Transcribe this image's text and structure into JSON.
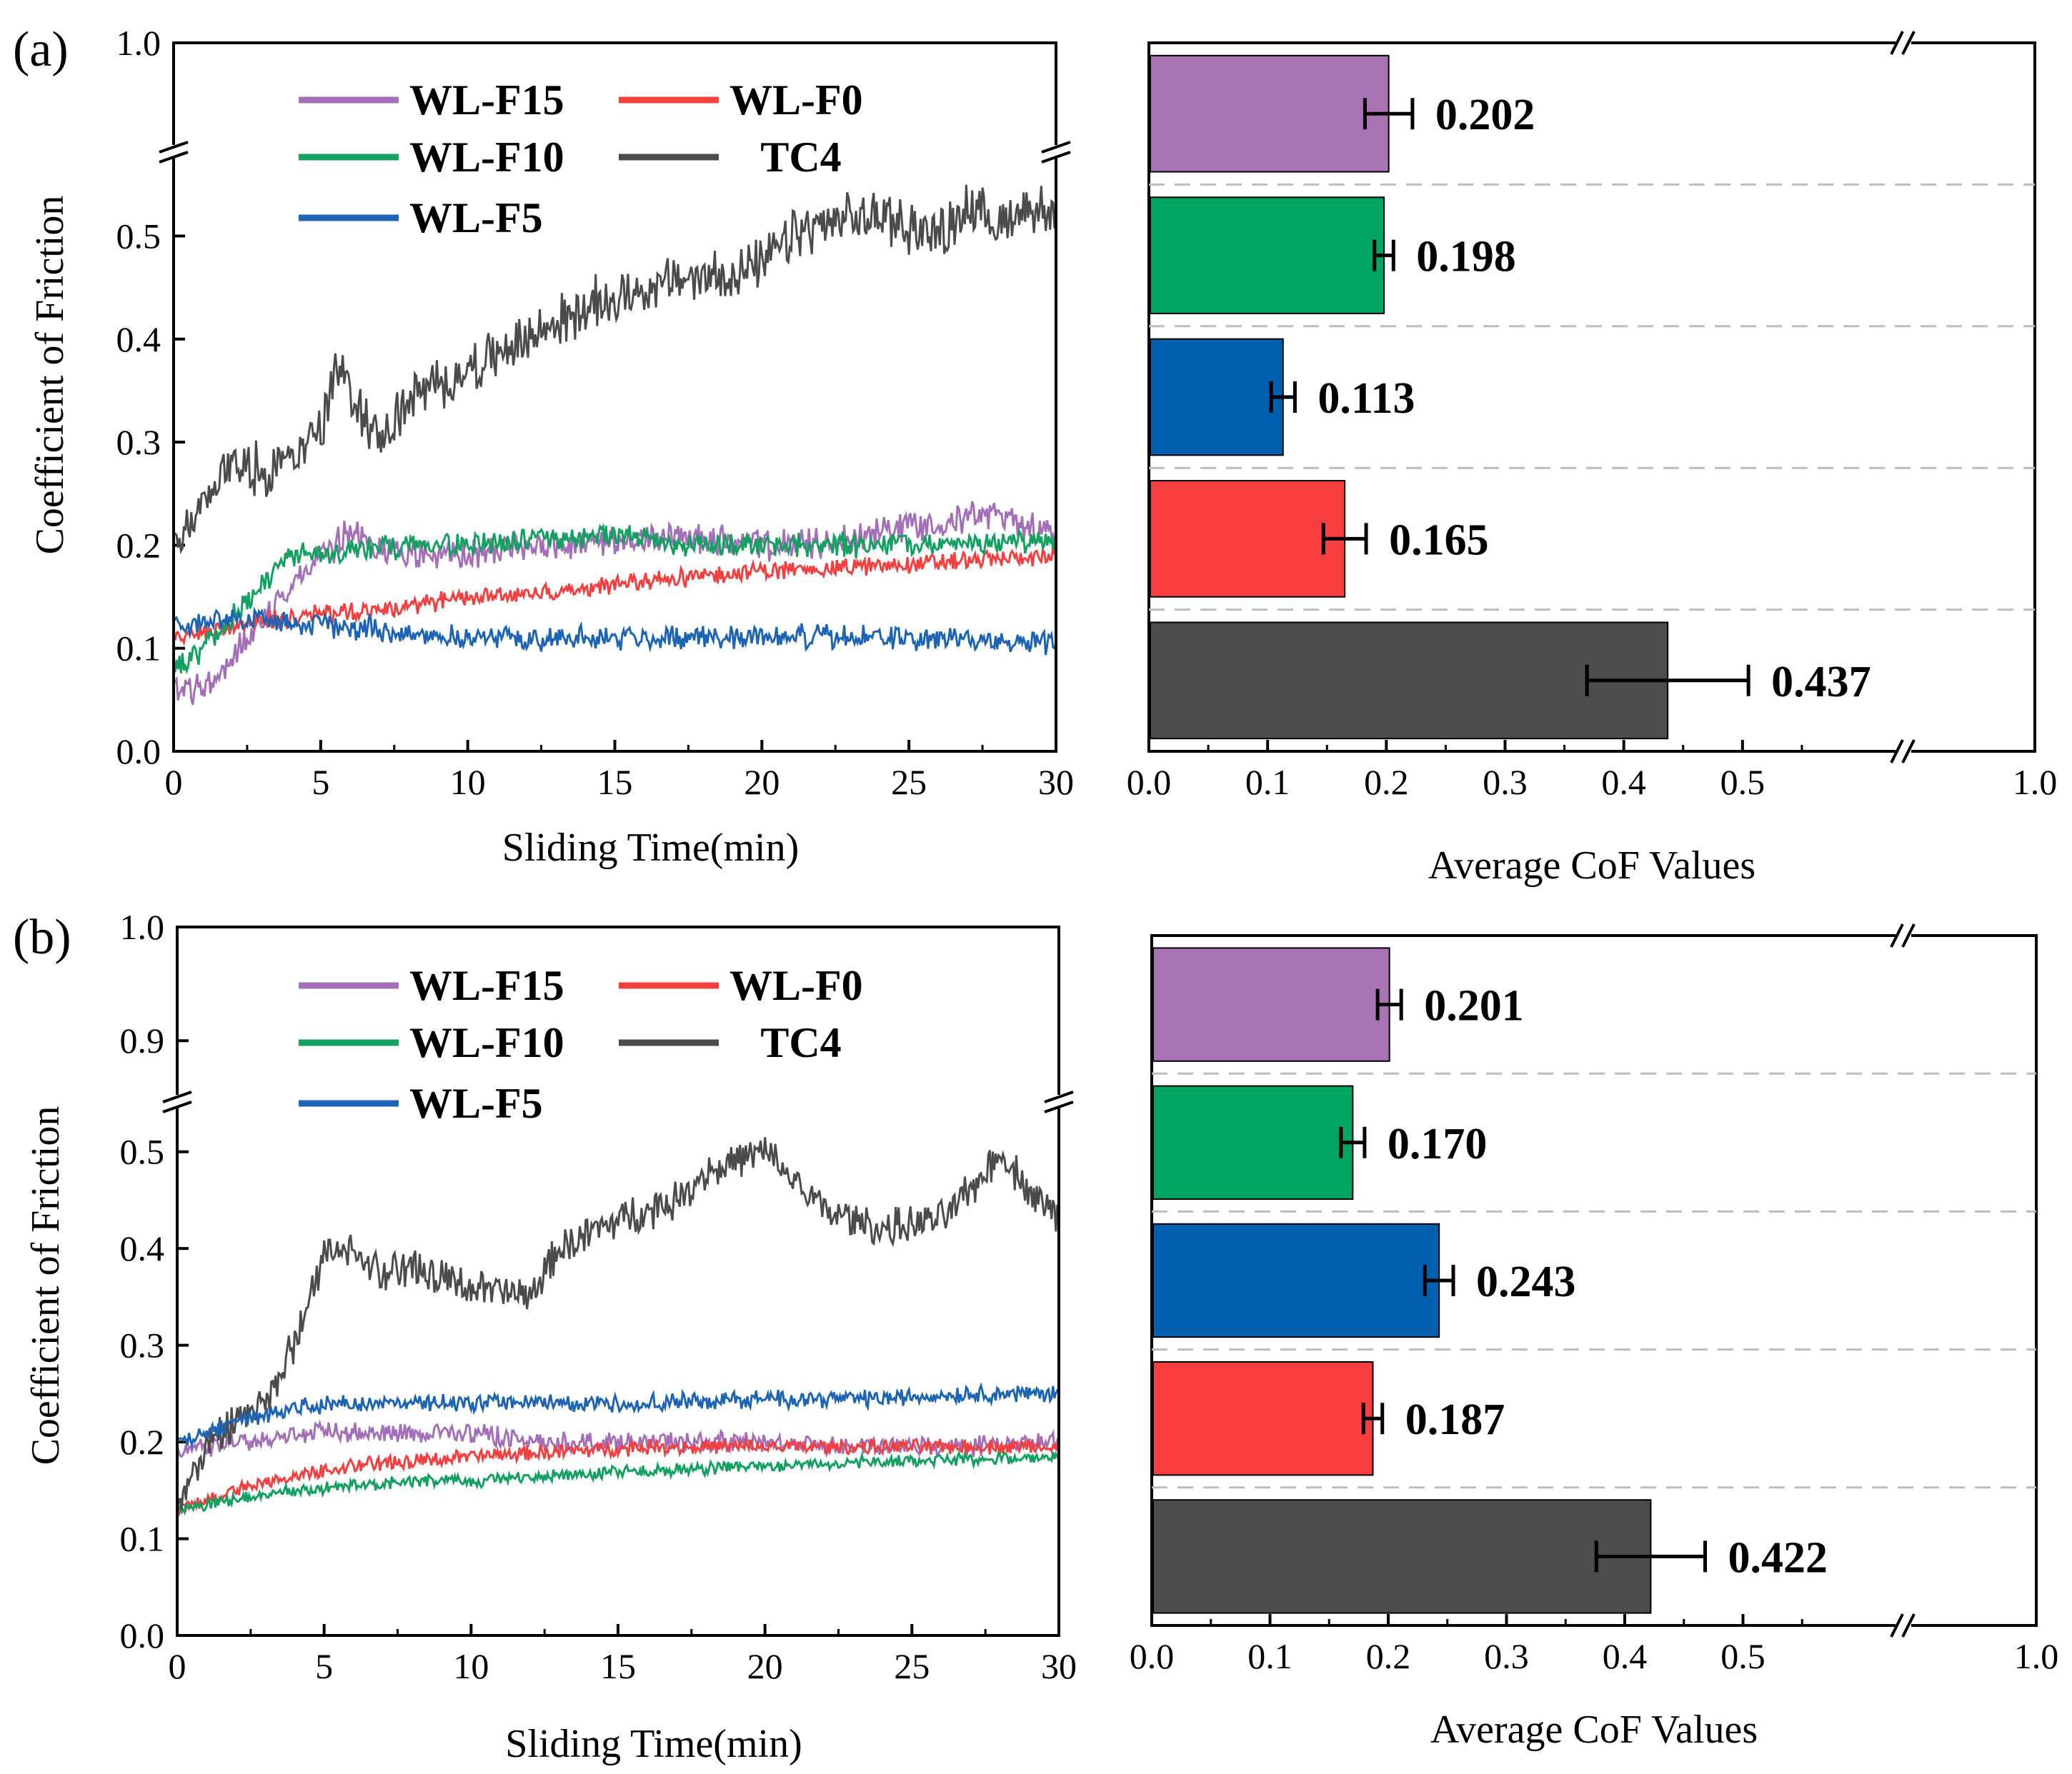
{
  "panels": [
    {
      "label": "(a)",
      "line_chart": {
        "type": "line",
        "xlabel": "Sliding Time(min)",
        "ylabel": "Coefficient of Friction",
        "xlim": [
          0,
          30
        ],
        "x_ticks": [
          "0",
          "5",
          "10",
          "15",
          "20",
          "25",
          "30"
        ],
        "ylim_lower": [
          0.0,
          0.58
        ],
        "ylim_upper": [
          1.0,
          1.0
        ],
        "y_ticks_lower": [
          "0.0",
          "0.1",
          "0.2",
          "0.3",
          "0.4",
          "0.5"
        ],
        "y_ticks_upper": [
          "1.0"
        ],
        "axis_break": true,
        "legend": [
          "WL-F15",
          "WL-F0",
          "WL-F10",
          "TC4",
          "WL-F5"
        ],
        "series": [
          {
            "name": "WL-F15",
            "color": "#a370b8",
            "points": [
              [
                0,
                0.06
              ],
              [
                1,
                0.06
              ],
              [
                2,
                0.09
              ],
              [
                3,
                0.13
              ],
              [
                4,
                0.16
              ],
              [
                5,
                0.19
              ],
              [
                6,
                0.21
              ],
              [
                8,
                0.19
              ],
              [
                10,
                0.19
              ],
              [
                12,
                0.2
              ],
              [
                15,
                0.2
              ],
              [
                17,
                0.21
              ],
              [
                20,
                0.2
              ],
              [
                22,
                0.2
              ],
              [
                25,
                0.22
              ],
              [
                28,
                0.23
              ],
              [
                30,
                0.21
              ]
            ],
            "noise": 0.012
          },
          {
            "name": "WL-F0",
            "color": "#f24040",
            "points": [
              [
                0,
                0.11
              ],
              [
                2,
                0.12
              ],
              [
                4,
                0.13
              ],
              [
                6,
                0.135
              ],
              [
                8,
                0.14
              ],
              [
                10,
                0.15
              ],
              [
                13,
                0.155
              ],
              [
                16,
                0.165
              ],
              [
                20,
                0.175
              ],
              [
                24,
                0.18
              ],
              [
                27,
                0.185
              ],
              [
                30,
                0.19
              ]
            ],
            "noise": 0.007
          },
          {
            "name": "WL-F10",
            "color": "#13a060",
            "points": [
              [
                0,
                0.08
              ],
              [
                1,
                0.1
              ],
              [
                2,
                0.13
              ],
              [
                3,
                0.16
              ],
              [
                4,
                0.19
              ],
              [
                6,
                0.195
              ],
              [
                8,
                0.2
              ],
              [
                10,
                0.2
              ],
              [
                12,
                0.205
              ],
              [
                15,
                0.21
              ],
              [
                18,
                0.2
              ],
              [
                20,
                0.2
              ],
              [
                23,
                0.2
              ],
              [
                26,
                0.2
              ],
              [
                30,
                0.205
              ]
            ],
            "noise": 0.009
          },
          {
            "name": "TC4",
            "color": "#4b4b4b",
            "points": [
              [
                0,
                0.2
              ],
              [
                1,
                0.24
              ],
              [
                2,
                0.28
              ],
              [
                3,
                0.27
              ],
              [
                4,
                0.29
              ],
              [
                5,
                0.31
              ],
              [
                5.5,
                0.37
              ],
              [
                6,
                0.35
              ],
              [
                7,
                0.3
              ],
              [
                8,
                0.34
              ],
              [
                10,
                0.37
              ],
              [
                12,
                0.4
              ],
              [
                14,
                0.43
              ],
              [
                16,
                0.45
              ],
              [
                18,
                0.46
              ],
              [
                20,
                0.47
              ],
              [
                21,
                0.5
              ],
              [
                22,
                0.51
              ],
              [
                24,
                0.52
              ],
              [
                26,
                0.5
              ],
              [
                27,
                0.53
              ],
              [
                28,
                0.51
              ],
              [
                29,
                0.53
              ],
              [
                30,
                0.52
              ]
            ],
            "noise": 0.02
          },
          {
            "name": "WL-F5",
            "color": "#1e64b4",
            "points": [
              [
                0,
                0.12
              ],
              [
                2,
                0.13
              ],
              [
                4,
                0.125
              ],
              [
                6,
                0.12
              ],
              [
                8,
                0.115
              ],
              [
                10,
                0.11
              ],
              [
                13,
                0.11
              ],
              [
                16,
                0.11
              ],
              [
                20,
                0.112
              ],
              [
                24,
                0.11
              ],
              [
                27,
                0.108
              ],
              [
                30,
                0.105
              ]
            ],
            "noise": 0.009
          }
        ]
      },
      "bar_chart": {
        "type": "bar",
        "orientation": "horizontal",
        "xlabel": "Average CoF Values",
        "xlim_lower": [
          0.0,
          0.6
        ],
        "xlim_upper": [
          1.0,
          1.0
        ],
        "x_ticks": [
          "0.0",
          "0.1",
          "0.2",
          "0.3",
          "0.4",
          "0.5",
          "1.0"
        ],
        "axis_break": true,
        "categories": [
          "WL-F15",
          "WL-F10",
          "WL-F5",
          "WL-F0",
          "TC4"
        ],
        "values": [
          0.202,
          0.198,
          0.113,
          0.165,
          0.437
        ],
        "value_labels": [
          "0.202",
          "0.198",
          "0.113",
          "0.165",
          "0.437"
        ],
        "errors": [
          0.02,
          0.008,
          0.01,
          0.018,
          0.068
        ],
        "colors": [
          "#a874b4",
          "#00a562",
          "#0060b0",
          "#f83e3e",
          "#4d4d4d"
        ]
      }
    },
    {
      "label": "(b)",
      "line_chart": {
        "type": "line",
        "xlabel": "Sliding Time(min)",
        "ylabel": "Coefficient of Friction",
        "xlim": [
          0,
          30
        ],
        "x_ticks": [
          "0",
          "5",
          "10",
          "15",
          "20",
          "25",
          "30"
        ],
        "ylim_lower": [
          0.0,
          0.55
        ],
        "ylim_upper": [
          0.87,
          1.0
        ],
        "y_ticks_lower": [
          "0.0",
          "0.1",
          "0.2",
          "0.3",
          "0.4",
          "0.5"
        ],
        "y_ticks_upper": [
          "0.9",
          "1.0"
        ],
        "axis_break": true,
        "legend": [
          "WL-F15",
          "WL-F0",
          "WL-F10",
          "TC4",
          "WL-F5"
        ],
        "series": [
          {
            "name": "WL-F15",
            "color": "#a370b8",
            "points": [
              [
                0,
                0.19
              ],
              [
                2,
                0.2
              ],
              [
                5,
                0.21
              ],
              [
                8,
                0.21
              ],
              [
                10,
                0.21
              ],
              [
                12,
                0.2
              ],
              [
                15,
                0.2
              ],
              [
                18,
                0.2
              ],
              [
                20,
                0.2
              ],
              [
                23,
                0.195
              ],
              [
                26,
                0.195
              ],
              [
                30,
                0.2
              ]
            ],
            "noise": 0.008
          },
          {
            "name": "WL-F0",
            "color": "#f24040",
            "points": [
              [
                0,
                0.13
              ],
              [
                2,
                0.15
              ],
              [
                4,
                0.165
              ],
              [
                6,
                0.175
              ],
              [
                8,
                0.18
              ],
              [
                10,
                0.185
              ],
              [
                13,
                0.19
              ],
              [
                16,
                0.195
              ],
              [
                20,
                0.195
              ],
              [
                24,
                0.195
              ],
              [
                30,
                0.195
              ]
            ],
            "noise": 0.006
          },
          {
            "name": "WL-F10",
            "color": "#13a060",
            "points": [
              [
                0,
                0.13
              ],
              [
                2,
                0.14
              ],
              [
                4,
                0.15
              ],
              [
                6,
                0.155
              ],
              [
                8,
                0.16
              ],
              [
                10,
                0.16
              ],
              [
                13,
                0.165
              ],
              [
                16,
                0.17
              ],
              [
                20,
                0.175
              ],
              [
                24,
                0.18
              ],
              [
                30,
                0.185
              ]
            ],
            "noise": 0.005
          },
          {
            "name": "TC4",
            "color": "#4b4b4b",
            "points": [
              [
                0,
                0.13
              ],
              [
                1,
                0.2
              ],
              [
                2,
                0.22
              ],
              [
                3,
                0.24
              ],
              [
                4,
                0.3
              ],
              [
                5,
                0.39
              ],
              [
                6,
                0.4
              ],
              [
                7,
                0.37
              ],
              [
                8,
                0.38
              ],
              [
                10,
                0.36
              ],
              [
                12,
                0.35
              ],
              [
                13,
                0.4
              ],
              [
                15,
                0.43
              ],
              [
                17,
                0.45
              ],
              [
                18,
                0.48
              ],
              [
                19,
                0.49
              ],
              [
                20,
                0.5
              ],
              [
                21,
                0.47
              ],
              [
                22,
                0.44
              ],
              [
                24,
                0.42
              ],
              [
                26,
                0.43
              ],
              [
                27,
                0.46
              ],
              [
                28,
                0.5
              ],
              [
                29,
                0.46
              ],
              [
                30,
                0.43
              ]
            ],
            "noise": 0.015
          },
          {
            "name": "WL-F5",
            "color": "#1e64b4",
            "points": [
              [
                0,
                0.2
              ],
              [
                2,
                0.22
              ],
              [
                4,
                0.235
              ],
              [
                6,
                0.24
              ],
              [
                8,
                0.24
              ],
              [
                10,
                0.24
              ],
              [
                13,
                0.24
              ],
              [
                16,
                0.24
              ],
              [
                20,
                0.245
              ],
              [
                24,
                0.245
              ],
              [
                27,
                0.25
              ],
              [
                30,
                0.25
              ]
            ],
            "noise": 0.007
          }
        ]
      },
      "bar_chart": {
        "type": "bar",
        "orientation": "horizontal",
        "xlabel": "Average CoF Values",
        "xlim_lower": [
          0.0,
          0.6
        ],
        "xlim_upper": [
          1.0,
          1.0
        ],
        "x_ticks": [
          "0.0",
          "0.1",
          "0.2",
          "0.3",
          "0.4",
          "0.5",
          "1.0"
        ],
        "axis_break": true,
        "categories": [
          "WL-F15",
          "WL-F10",
          "WL-F5",
          "WL-F0",
          "TC4"
        ],
        "values": [
          0.201,
          0.17,
          0.243,
          0.187,
          0.422
        ],
        "value_labels": [
          "0.201",
          "0.170",
          "0.243",
          "0.187",
          "0.422"
        ],
        "errors": [
          0.01,
          0.01,
          0.012,
          0.008,
          0.046
        ],
        "colors": [
          "#a874b4",
          "#00a562",
          "#0060b0",
          "#f83e3e",
          "#4d4d4d"
        ]
      }
    }
  ]
}
